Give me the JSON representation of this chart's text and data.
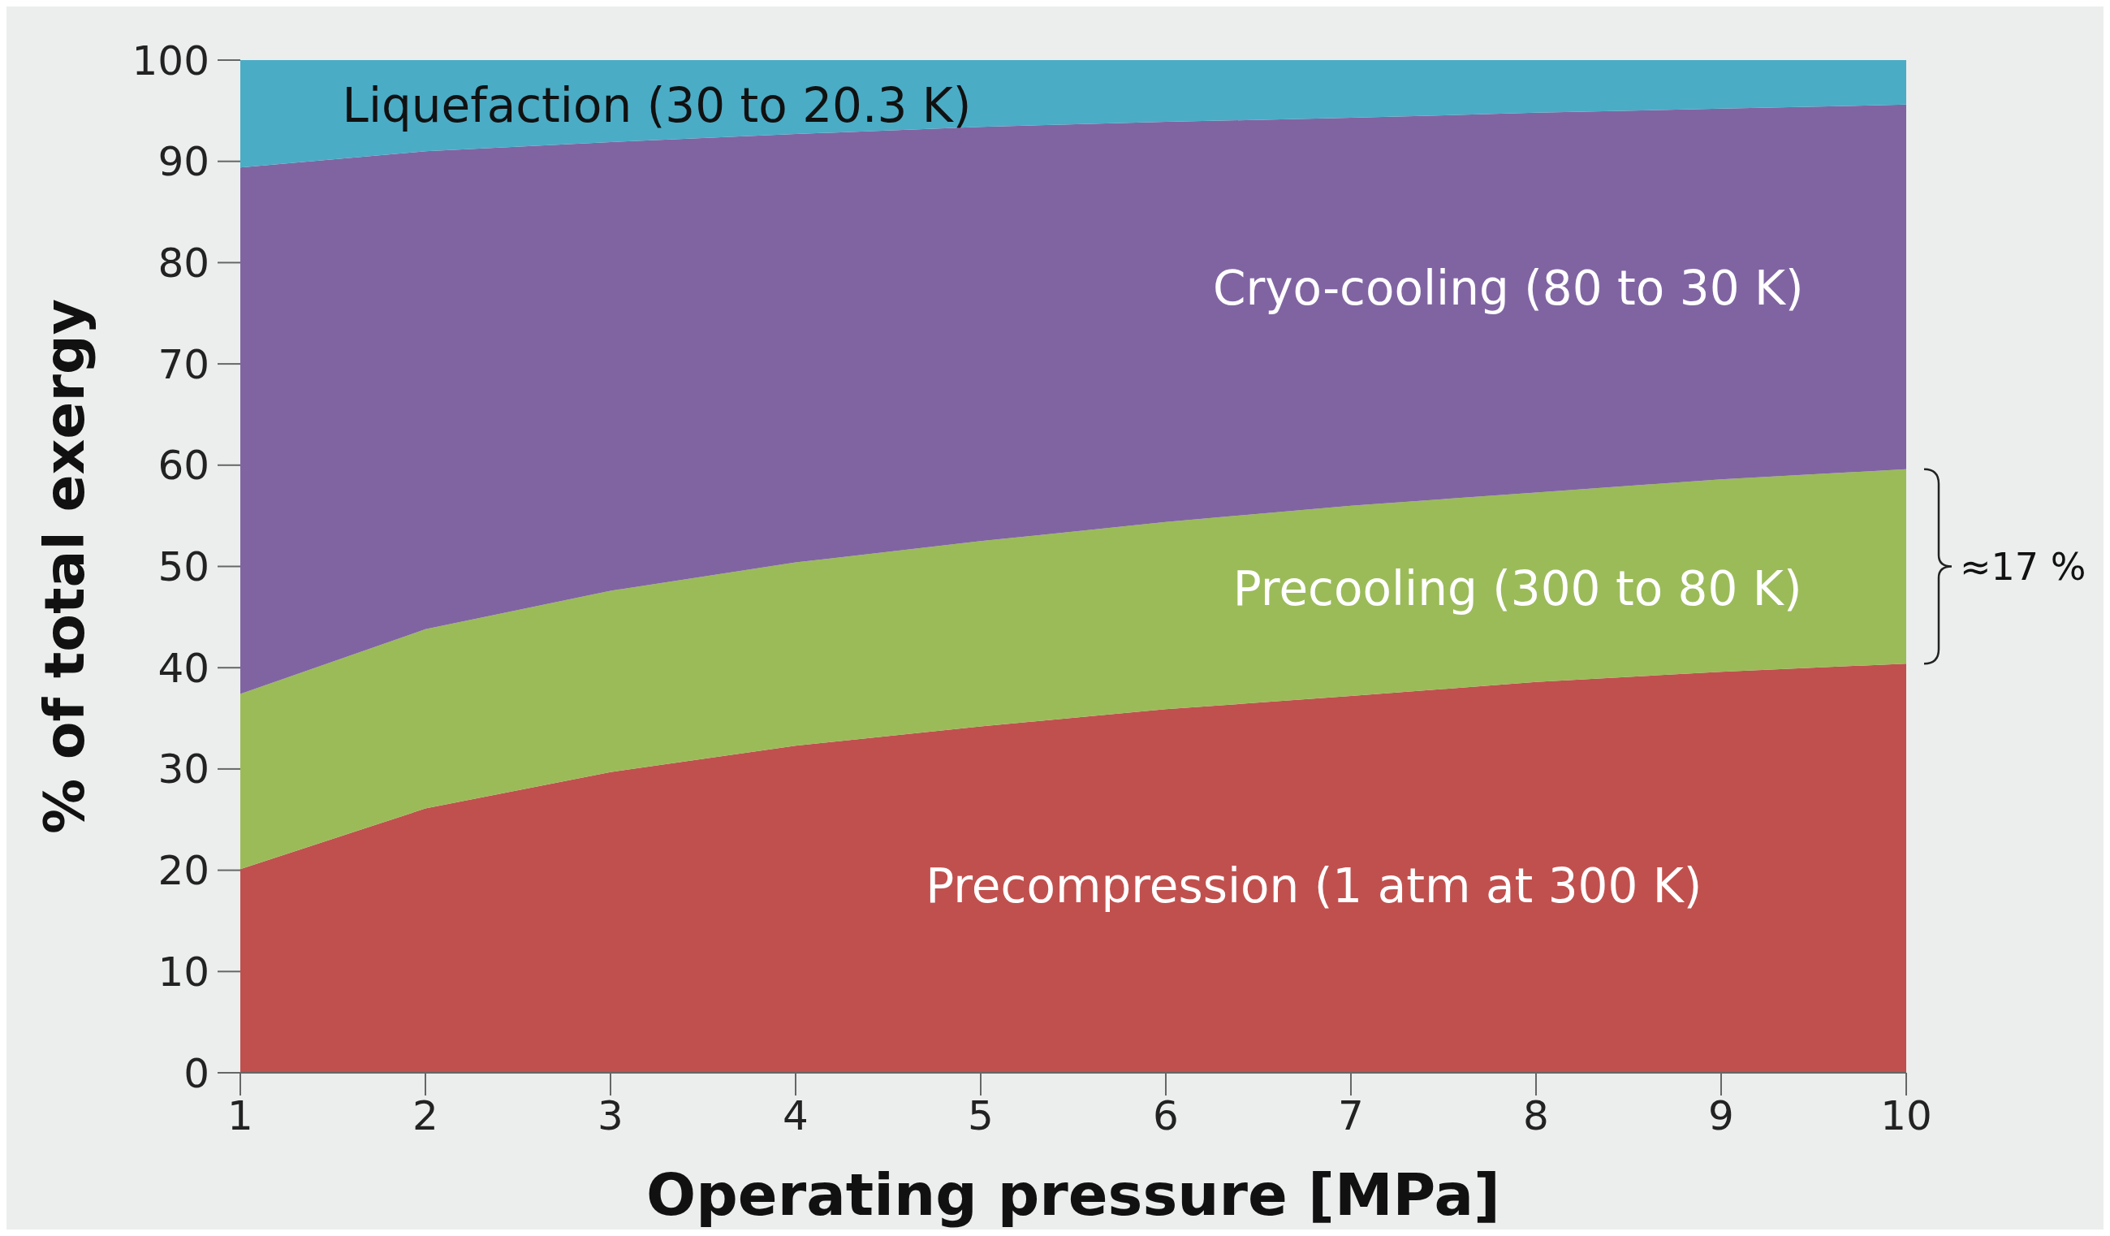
{
  "chart_data": {
    "type": "area",
    "stacked": true,
    "xlabel": "Operating pressure [MPa]",
    "ylabel": "% of total exergy",
    "x": [
      1,
      2,
      3,
      4,
      5,
      6,
      7,
      8,
      9,
      10
    ],
    "series": [
      {
        "name": "Precompression (1 atm at 300 K)",
        "color": "#c0504e",
        "values": [
          20.1,
          26.1,
          29.7,
          32.3,
          34.2,
          35.9,
          37.2,
          38.6,
          39.6,
          40.4
        ]
      },
      {
        "name": "Precooling (300 to 80 K)",
        "color": "#9bbb59",
        "values": [
          17.3,
          17.7,
          17.9,
          18.1,
          18.3,
          18.5,
          18.8,
          18.7,
          19.0,
          19.2
        ]
      },
      {
        "name": "Cryo-cooling (80 to 30 K)",
        "color": "#8064a2",
        "values": [
          52.0,
          47.2,
          44.3,
          42.3,
          40.9,
          39.5,
          38.3,
          37.5,
          36.6,
          36.0
        ]
      },
      {
        "name": "Liquefaction (30 to 20.3 K)",
        "color": "#4bacc6",
        "values": [
          10.6,
          9.0,
          8.1,
          7.3,
          6.6,
          6.1,
          5.7,
          5.2,
          4.8,
          4.4
        ]
      }
    ],
    "xlim": [
      1,
      10
    ],
    "xticks": [
      1,
      2,
      3,
      4,
      5,
      6,
      7,
      8,
      9,
      10
    ],
    "ylim": [
      0,
      100
    ],
    "yticks": [
      0,
      10,
      20,
      30,
      40,
      50,
      60,
      70,
      80,
      90,
      100
    ],
    "grid": false,
    "legend": false,
    "annotations": [
      {
        "text": "≈17 %",
        "x": 10,
        "y": 50
      }
    ]
  }
}
